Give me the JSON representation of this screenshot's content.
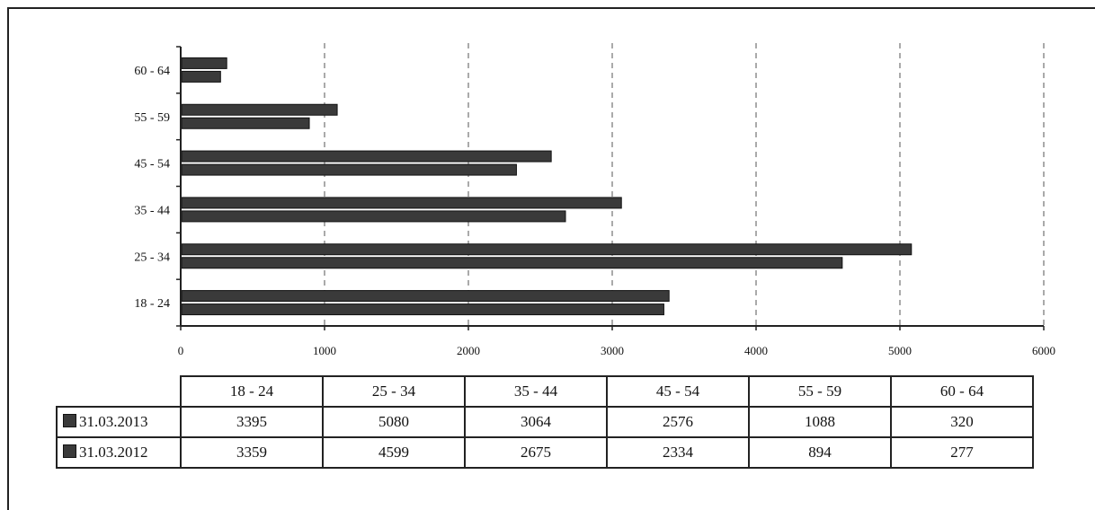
{
  "chart_data": {
    "type": "bar",
    "orientation": "horizontal",
    "categories": [
      "18 - 24",
      "25 - 34",
      "35 - 44",
      "45 - 54",
      "55 - 59",
      "60 - 64"
    ],
    "series": [
      {
        "name": "31.03.2013",
        "values": [
          3395,
          5080,
          3064,
          2576,
          1088,
          320
        ],
        "color": "#3a3a3a"
      },
      {
        "name": "31.03.2012",
        "values": [
          3359,
          4599,
          2675,
          2334,
          894,
          277
        ],
        "color": "#3a3a3a"
      }
    ],
    "xlim": [
      0,
      6000
    ],
    "xticks": [
      0,
      1000,
      2000,
      3000,
      4000,
      5000,
      6000
    ],
    "grid": "vertical dashed",
    "legend": "data table below chart"
  }
}
